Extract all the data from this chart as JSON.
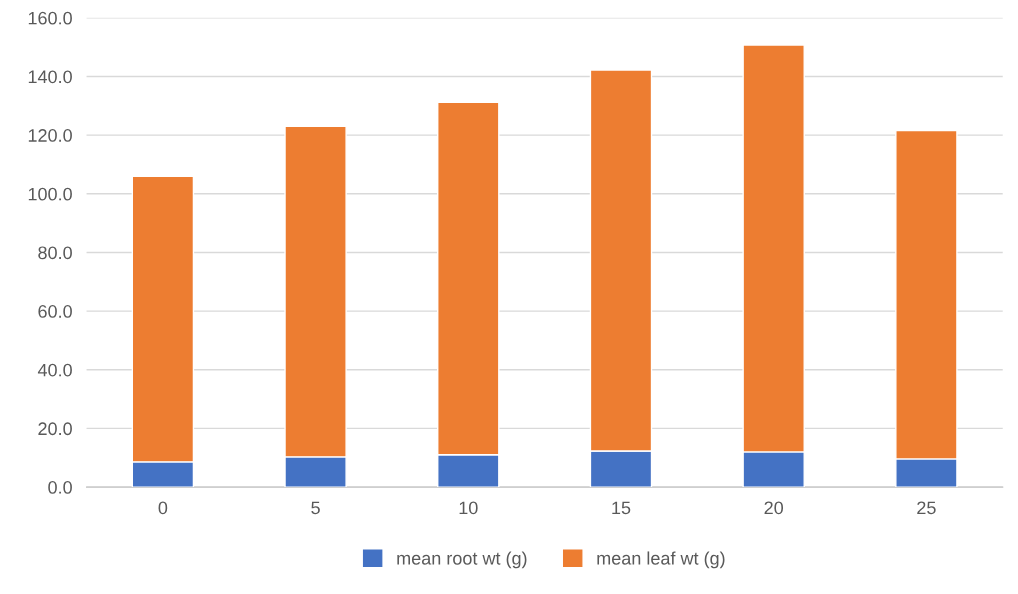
{
  "chart_data": {
    "type": "bar",
    "stacked": true,
    "categories": [
      "0",
      "5",
      "10",
      "15",
      "20",
      "25"
    ],
    "series": [
      {
        "name": "mean root wt (g)",
        "color": "#4472c4",
        "values": [
          8.6,
          10.3,
          11.0,
          12.3,
          12.0,
          9.6
        ]
      },
      {
        "name": "mean leaf wt (g)",
        "color": "#ed7d31",
        "values": [
          97.4,
          112.7,
          120.2,
          129.9,
          138.7,
          112.0
        ]
      }
    ],
    "ylim": [
      0,
      160
    ],
    "yticks": [
      {
        "value": 0,
        "label": "0.0"
      },
      {
        "value": 20,
        "label": "20.0"
      },
      {
        "value": 40,
        "label": "40.0"
      },
      {
        "value": 60,
        "label": "60.0"
      },
      {
        "value": 80,
        "label": "80.0"
      },
      {
        "value": 100,
        "label": "100.0"
      },
      {
        "value": 120,
        "label": "120.0"
      },
      {
        "value": 140,
        "label": "140.0"
      },
      {
        "value": 160,
        "label": "160.0"
      }
    ],
    "grid": "y",
    "legend": "bottom"
  }
}
